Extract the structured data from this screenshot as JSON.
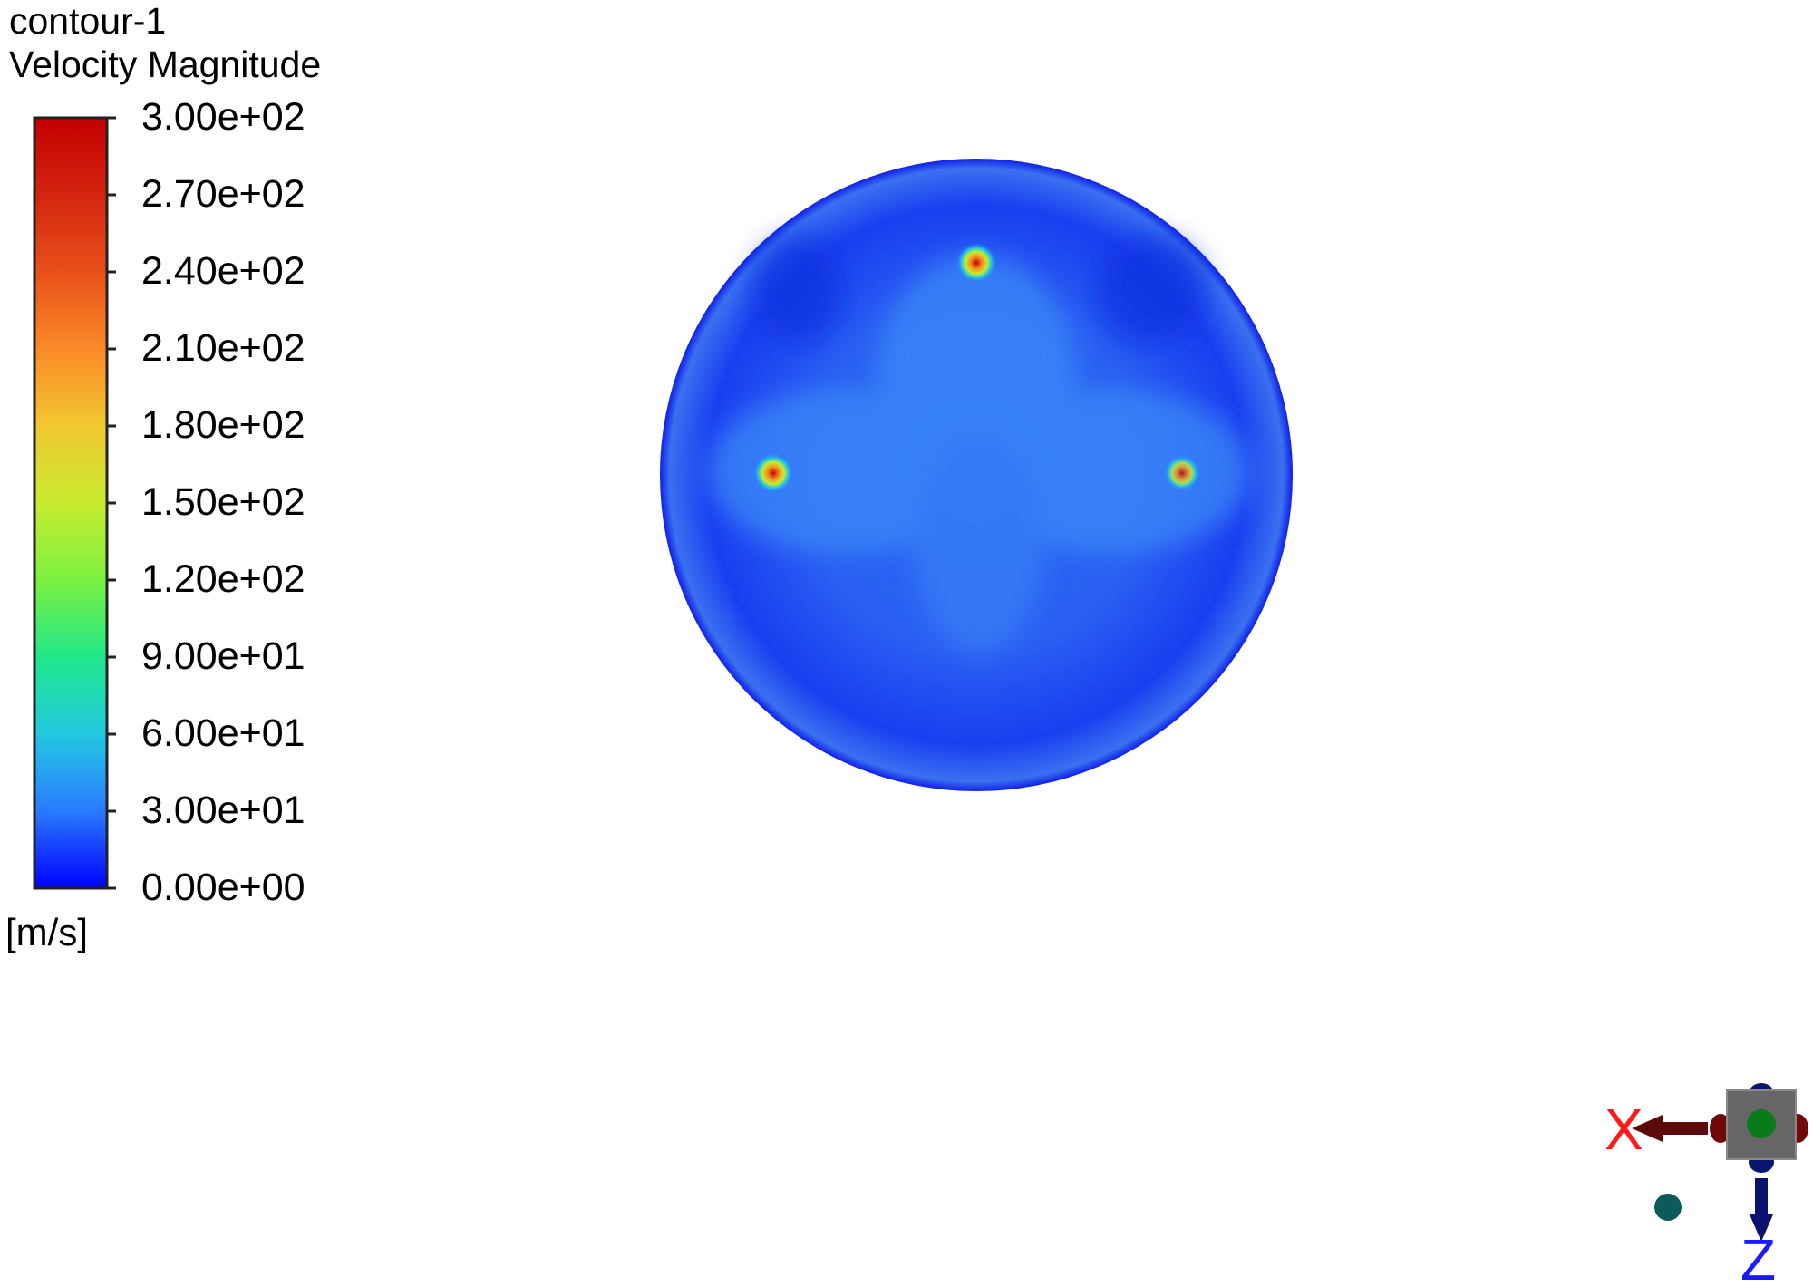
{
  "chart_data": {
    "type": "heatmap",
    "title": "contour-1",
    "subtitle": "Velocity Magnitude",
    "colorbar": {
      "unit": "[m/s]",
      "range": [
        0,
        300
      ],
      "ticks": [
        "3.00e+02",
        "2.70e+02",
        "2.40e+02",
        "2.10e+02",
        "1.80e+02",
        "1.50e+02",
        "1.20e+02",
        "9.00e+01",
        "6.00e+01",
        "3.00e+01",
        "0.00e+00"
      ],
      "tick_values": [
        300,
        270,
        240,
        210,
        180,
        150,
        120,
        90,
        60,
        30,
        0
      ],
      "colormap": [
        "#0000ff",
        "#2a7bff",
        "#22c8e0",
        "#20e88a",
        "#7cf040",
        "#c8ec30",
        "#f2c830",
        "#fb8a28",
        "#e8501a",
        "#d42510",
        "#c40000"
      ]
    },
    "field": {
      "shape": "circle",
      "background_color": "#1e4cf0",
      "hotspots": [
        {
          "position": "top",
          "peak_value": 260
        },
        {
          "position": "left",
          "peak_value": 270
        },
        {
          "position": "right",
          "peak_value": 200
        }
      ]
    }
  },
  "axis_triad": {
    "x_label": "X",
    "z_label": "Z",
    "x_color": "#ff1a1a",
    "z_color": "#1a1aff"
  }
}
